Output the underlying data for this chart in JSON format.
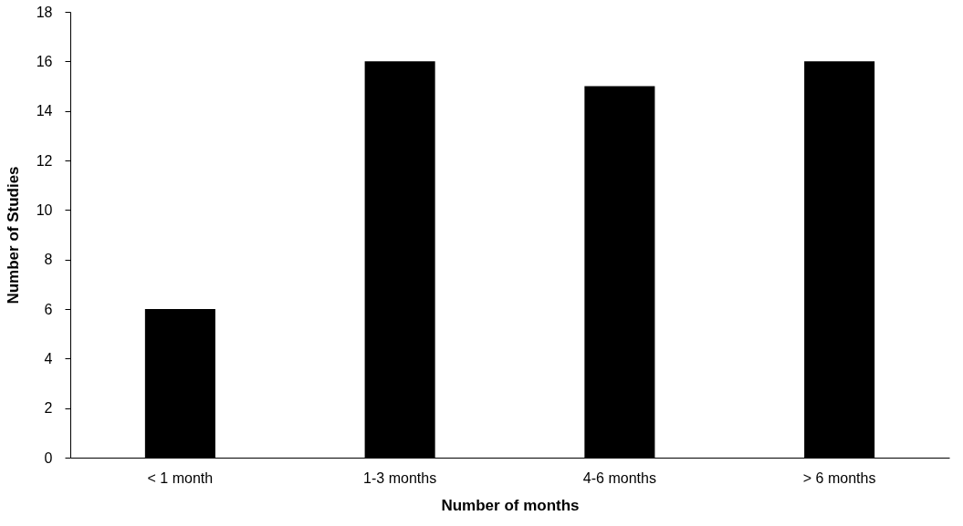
{
  "chart_data": {
    "type": "bar",
    "xlabel": "Number of months",
    "ylabel": "Number of Studies",
    "categories": [
      "< 1 month",
      "1-3 months",
      "4-6 months",
      "> 6 months"
    ],
    "values": [
      6,
      16,
      15,
      16
    ],
    "color": "#000000",
    "ylim": [
      0,
      18
    ],
    "yticks": [
      0,
      2,
      4,
      6,
      8,
      10,
      12,
      14,
      16,
      18
    ],
    "grid": false
  }
}
